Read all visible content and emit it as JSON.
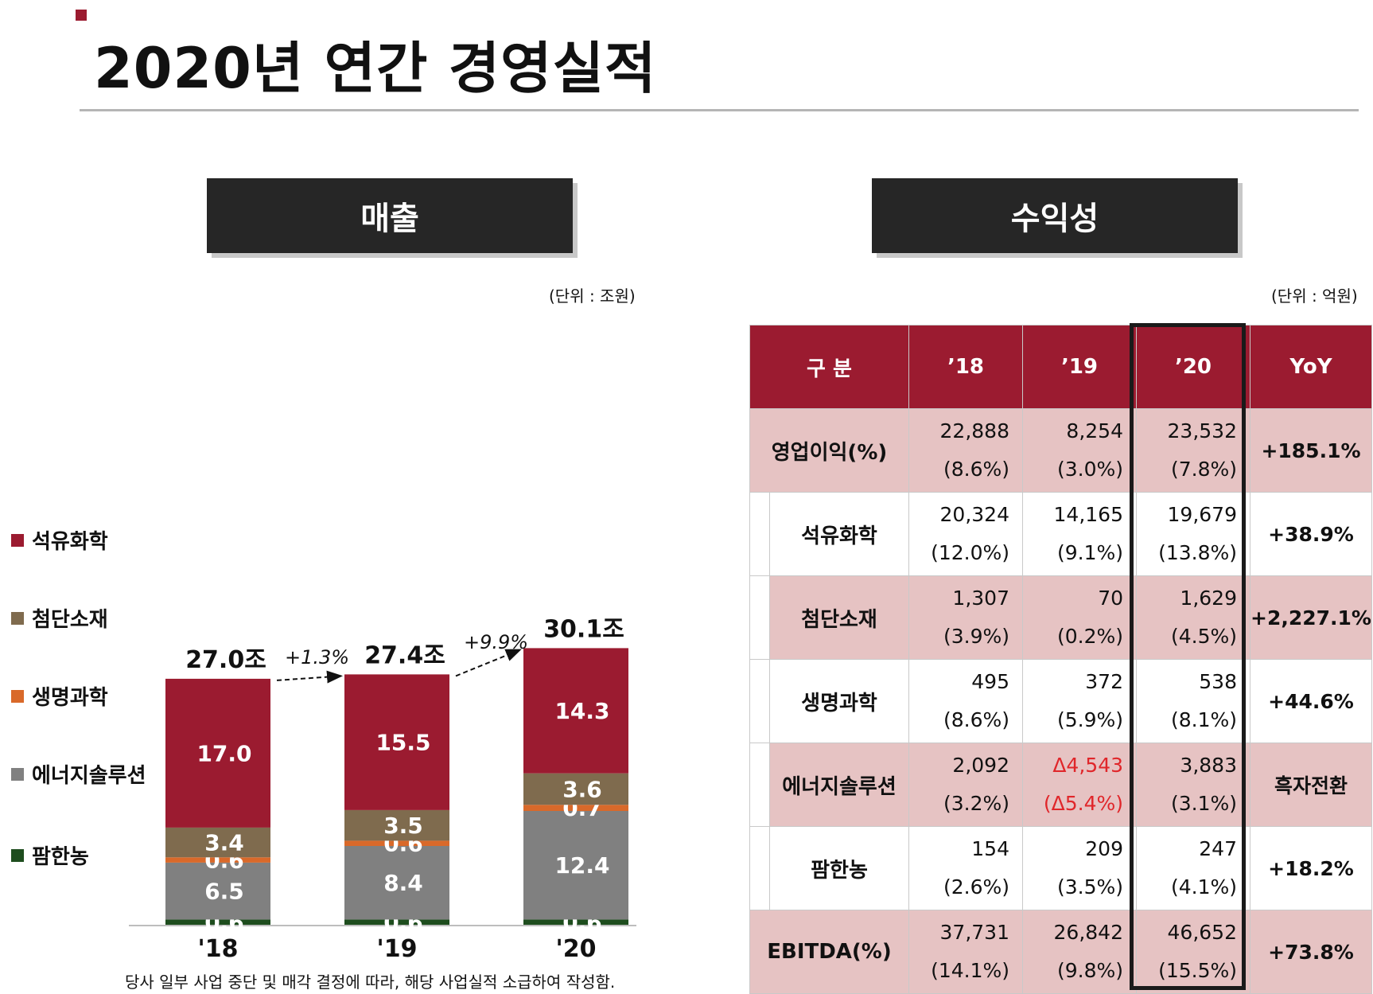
{
  "page": {
    "title": "2020년 연간 경영실적",
    "footnote": "당사 일부 사업 중단 및 매각 결정에 따라, 해당 사업실적 소급하여 작성함."
  },
  "sales": {
    "header": "매출",
    "unit": "(단위 : 조원)"
  },
  "profit": {
    "header": "수익성",
    "unit": "(단위 : 억원)",
    "columns": [
      "구 분",
      "’18",
      "’19",
      "’20",
      "YoY"
    ],
    "rows": [
      {
        "label": "영업이익(%)",
        "v18": "22,888",
        "p18": "(8.6%)",
        "v19": "8,254",
        "p19": "(3.0%)",
        "v20": "23,532",
        "p20": "(7.8%)",
        "yoy": "+185.1%"
      },
      {
        "label": "석유화학",
        "v18": "20,324",
        "p18": "(12.0%)",
        "v19": "14,165",
        "p19": "(9.1%)",
        "v20": "19,679",
        "p20": "(13.8%)",
        "yoy": "+38.9%"
      },
      {
        "label": "첨단소재",
        "v18": "1,307",
        "p18": "(3.9%)",
        "v19": "70",
        "p19": "(0.2%)",
        "v20": "1,629",
        "p20": "(4.5%)",
        "yoy": "+2,227.1%"
      },
      {
        "label": "생명과학",
        "v18": "495",
        "p18": "(8.6%)",
        "v19": "372",
        "p19": "(5.9%)",
        "v20": "538",
        "p20": "(8.1%)",
        "yoy": "+44.6%"
      },
      {
        "label": "에너지솔루션",
        "v18": "2,092",
        "p18": "(3.2%)",
        "v19": "Δ4,543",
        "p19": "(Δ5.4%)",
        "v20": "3,883",
        "p20": "(3.1%)",
        "yoy": "흑자전환"
      },
      {
        "label": "팜한농",
        "v18": "154",
        "p18": "(2.6%)",
        "v19": "209",
        "p19": "(3.5%)",
        "v20": "247",
        "p20": "(4.1%)",
        "yoy": "+18.2%"
      },
      {
        "label": "EBITDA(%)",
        "v18": "37,731",
        "p18": "(14.1%)",
        "v19": "26,842",
        "p19": "(9.8%)",
        "v20": "46,652",
        "p20": "(15.5%)",
        "yoy": "+73.8%"
      }
    ]
  },
  "chart_data": {
    "type": "bar",
    "stacked": true,
    "title": "매출",
    "unit": "(단위 : 조원)",
    "categories": [
      "'18",
      "'19",
      "'20"
    ],
    "series": [
      {
        "name": "팜한농",
        "color": "#1e4d1e",
        "values": [
          0.6,
          0.6,
          0.6
        ]
      },
      {
        "name": "에너지솔루션",
        "color": "#808080",
        "values": [
          6.5,
          8.4,
          12.4
        ]
      },
      {
        "name": "생명과학",
        "color": "#d9692a",
        "values": [
          0.6,
          0.6,
          0.7
        ]
      },
      {
        "name": "첨단소재",
        "color": "#7f6b4e",
        "values": [
          3.4,
          3.5,
          3.6
        ]
      },
      {
        "name": "석유화학",
        "color": "#9b1b30",
        "values": [
          17.0,
          15.5,
          14.3
        ]
      }
    ],
    "totals": [
      "27.0조",
      "27.4조",
      "30.1조"
    ],
    "growth": [
      "+1.3%",
      "+9.9%"
    ],
    "legend_order": [
      "석유화학",
      "첨단소재",
      "생명과학",
      "에너지솔루션",
      "팜한농"
    ]
  }
}
